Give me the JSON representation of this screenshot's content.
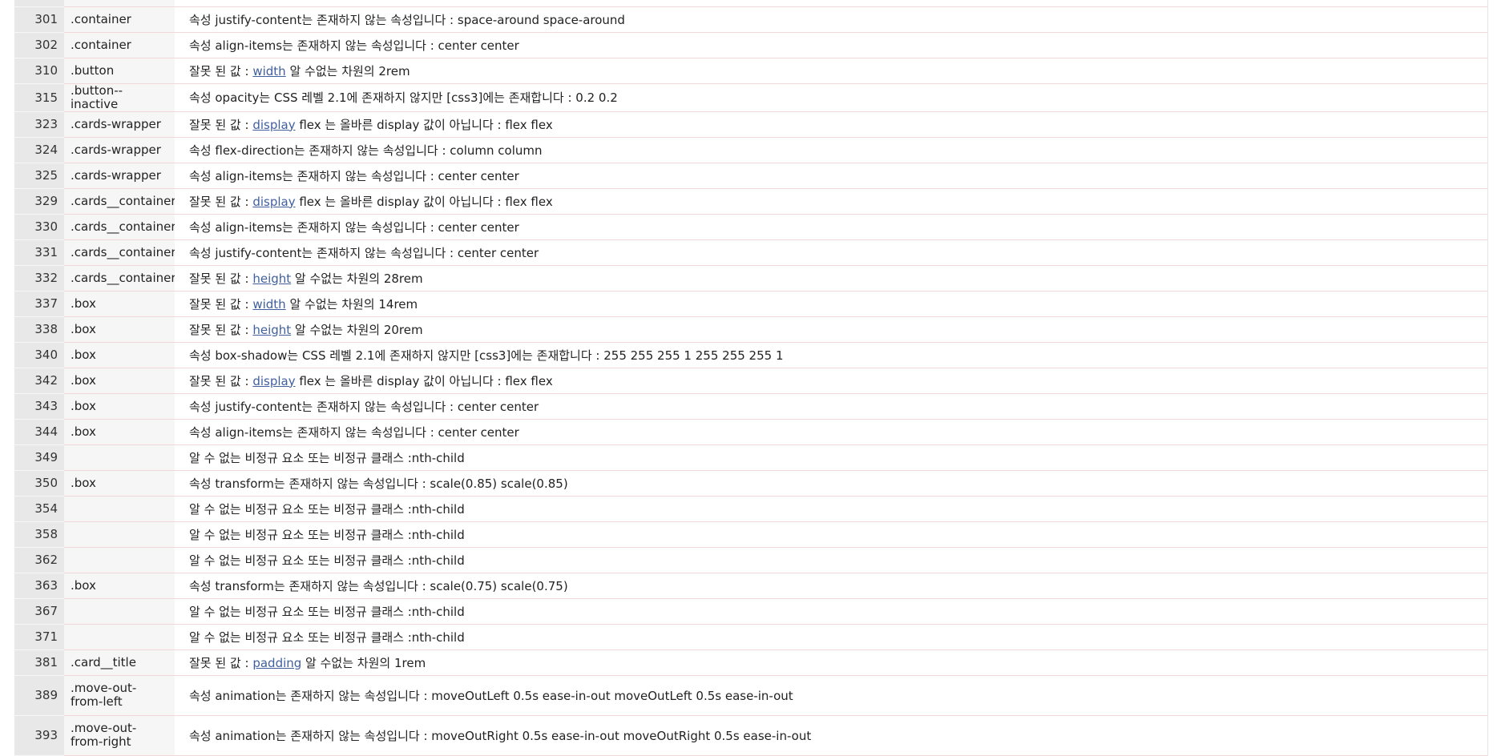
{
  "rows": [
    {
      "line": "",
      "context": "",
      "pre": "",
      "link": "",
      "post": ""
    },
    {
      "line": "301",
      "context": ".container",
      "pre": "속성 justify-content는 존재하지 않는 속성입니다 : space-around space-around",
      "link": "",
      "post": ""
    },
    {
      "line": "302",
      "context": ".container",
      "pre": "속성 align-items는 존재하지 않는 속성입니다 : center center",
      "link": "",
      "post": ""
    },
    {
      "line": "310",
      "context": ".button",
      "pre": "잘못 된 값 : ",
      "link": "width",
      "post": " 알 수없는 차원의 2rem"
    },
    {
      "line": "315",
      "context": ".button--inactive",
      "pre": "속성 opacity는 CSS 레벨 2.1에 존재하지 않지만 [css3]에는 존재합니다 : 0.2 0.2",
      "link": "",
      "post": ""
    },
    {
      "line": "323",
      "context": ".cards-wrapper",
      "pre": "잘못 된 값 : ",
      "link": "display",
      "post": " flex 는 올바른 display 값이 아닙니다 : flex flex"
    },
    {
      "line": "324",
      "context": ".cards-wrapper",
      "pre": "속성 flex-direction는 존재하지 않는 속성입니다 : column column",
      "link": "",
      "post": ""
    },
    {
      "line": "325",
      "context": ".cards-wrapper",
      "pre": "속성 align-items는 존재하지 않는 속성입니다 : center center",
      "link": "",
      "post": ""
    },
    {
      "line": "329",
      "context": ".cards__container",
      "pre": "잘못 된 값 : ",
      "link": "display",
      "post": " flex 는 올바른 display 값이 아닙니다 : flex flex"
    },
    {
      "line": "330",
      "context": ".cards__container",
      "pre": "속성 align-items는 존재하지 않는 속성입니다 : center center",
      "link": "",
      "post": ""
    },
    {
      "line": "331",
      "context": ".cards__container",
      "pre": "속성 justify-content는 존재하지 않는 속성입니다 : center center",
      "link": "",
      "post": ""
    },
    {
      "line": "332",
      "context": ".cards__container",
      "pre": "잘못 된 값 : ",
      "link": "height",
      "post": " 알 수없는 차원의 28rem"
    },
    {
      "line": "337",
      "context": ".box",
      "pre": "잘못 된 값 : ",
      "link": "width",
      "post": " 알 수없는 차원의 14rem"
    },
    {
      "line": "338",
      "context": ".box",
      "pre": "잘못 된 값 : ",
      "link": "height",
      "post": " 알 수없는 차원의 20rem"
    },
    {
      "line": "340",
      "context": ".box",
      "pre": "속성 box-shadow는 CSS 레벨 2.1에 존재하지 않지만 [css3]에는 존재합니다 : 255 255 255 1 255 255 255 1",
      "link": "",
      "post": ""
    },
    {
      "line": "342",
      "context": ".box",
      "pre": "잘못 된 값 : ",
      "link": "display",
      "post": " flex 는 올바른 display 값이 아닙니다 : flex flex"
    },
    {
      "line": "343",
      "context": ".box",
      "pre": "속성 justify-content는 존재하지 않는 속성입니다 : center center",
      "link": "",
      "post": ""
    },
    {
      "line": "344",
      "context": ".box",
      "pre": "속성 align-items는 존재하지 않는 속성입니다 : center center",
      "link": "",
      "post": ""
    },
    {
      "line": "349",
      "context": "",
      "pre": "알 수 없는 비정규 요소 또는 비정규 클래스 :nth-child",
      "link": "",
      "post": ""
    },
    {
      "line": "350",
      "context": ".box",
      "pre": "속성 transform는 존재하지 않는 속성입니다 : scale(0.85) scale(0.85)",
      "link": "",
      "post": ""
    },
    {
      "line": "354",
      "context": "",
      "pre": "알 수 없는 비정규 요소 또는 비정규 클래스 :nth-child",
      "link": "",
      "post": ""
    },
    {
      "line": "358",
      "context": "",
      "pre": "알 수 없는 비정규 요소 또는 비정규 클래스 :nth-child",
      "link": "",
      "post": ""
    },
    {
      "line": "362",
      "context": "",
      "pre": "알 수 없는 비정규 요소 또는 비정규 클래스 :nth-child",
      "link": "",
      "post": ""
    },
    {
      "line": "363",
      "context": ".box",
      "pre": "속성 transform는 존재하지 않는 속성입니다 : scale(0.75) scale(0.75)",
      "link": "",
      "post": ""
    },
    {
      "line": "367",
      "context": "",
      "pre": "알 수 없는 비정규 요소 또는 비정규 클래스 :nth-child",
      "link": "",
      "post": ""
    },
    {
      "line": "371",
      "context": "",
      "pre": "알 수 없는 비정규 요소 또는 비정규 클래스 :nth-child",
      "link": "",
      "post": ""
    },
    {
      "line": "381",
      "context": ".card__title",
      "pre": "잘못 된 값 : ",
      "link": "padding",
      "post": " 알 수없는 차원의 1rem"
    },
    {
      "line": "389",
      "context": ".move-out-from-left",
      "pre": "속성 animation는 존재하지 않는 속성입니다 : moveOutLeft 0.5s ease-in-out moveOutLeft 0.5s ease-in-out",
      "link": "",
      "post": ""
    },
    {
      "line": "393",
      "context": ".move-out-from-right",
      "pre": "속성 animation는 존재하지 않는 속성입니다 : moveOutRight 0.5s ease-in-out moveOutRight 0.5s ease-in-out",
      "link": "",
      "post": ""
    }
  ],
  "colors": {
    "line_bg": "#e8e8e8",
    "context_bg": "#f6f6f6",
    "row_border": "#f3d6da",
    "link": "#3f5f9f"
  }
}
